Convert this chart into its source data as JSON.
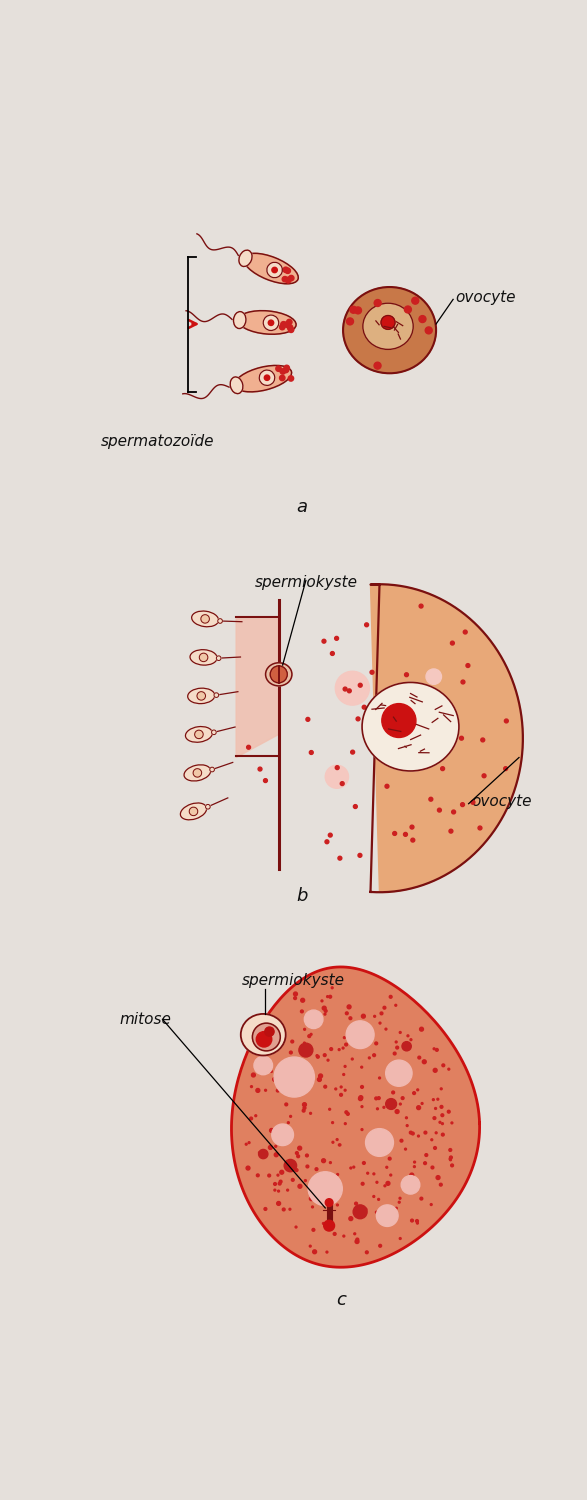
{
  "bg_color": "#e5e0db",
  "dark_red": "#7a1010",
  "mid_red": "#cc1111",
  "body_pink": "#f0b090",
  "pale_cream": "#f5dcc8",
  "salmon_fill": "#e89070",
  "light_salmon": "#ebb898",
  "dot_red": "#cc2020",
  "ovocyte_fill_a": "#c87848",
  "ovocyte_fill_b": "#e8a878",
  "egg_fill_c": "#e07858",
  "label_color": "#111111",
  "panel_a_label": "a",
  "panel_b_label": "b",
  "panel_c_label": "c",
  "label_spermatozoide": "spermatozoïde",
  "label_ovocyte": "ovocyte",
  "label_spermiokyste": "spermiokyste",
  "label_mitose": "mitose",
  "font_size_label": 11,
  "font_size_panel": 13
}
